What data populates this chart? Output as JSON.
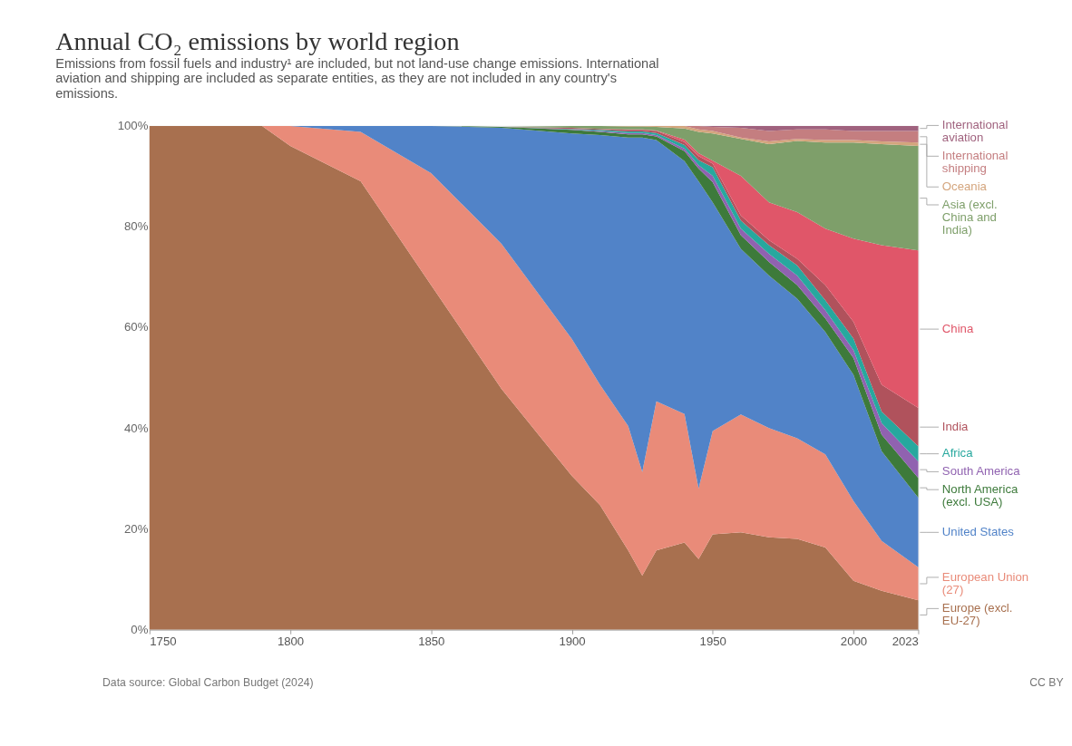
{
  "chart_data": {
    "type": "area",
    "stacked": true,
    "title": "Annual CO₂ emissions by world region",
    "subtitle": "Emissions from fossil fuels and industry¹ are included, but not land-use change emissions. International aviation and shipping are included as separate entities, as they are not included in any country's emissions.",
    "x": [
      1750,
      1790,
      1800,
      1825,
      1850,
      1875,
      1900,
      1910,
      1920,
      1925,
      1930,
      1940,
      1945,
      1950,
      1960,
      1970,
      1980,
      1990,
      2000,
      2010,
      2023
    ],
    "xlim": [
      1750,
      2023
    ],
    "xticks": [
      1750,
      1800,
      1850,
      1900,
      1950,
      2000,
      2023
    ],
    "ylim": [
      0,
      100
    ],
    "yticks": [
      {
        "value": 0,
        "label": "0%"
      },
      {
        "value": 20,
        "label": "20%"
      },
      {
        "value": 40,
        "label": "40%"
      },
      {
        "value": 60,
        "label": "60%"
      },
      {
        "value": 80,
        "label": "80%"
      },
      {
        "value": 100,
        "label": "100%"
      }
    ],
    "grid": false,
    "legend": "right",
    "series": [
      {
        "name": "Europe (excl. EU-27)",
        "color": "#a8704f",
        "values": [
          100,
          100,
          96,
          89,
          68.4,
          47.8,
          30.5,
          24.7,
          15.7,
          10.7,
          15.7,
          17.3,
          14,
          18.9,
          19.3,
          18.3,
          18,
          16.3,
          9.7,
          7.7,
          5.8
        ]
      },
      {
        "name": "European Union (27)",
        "color": "#e98b79",
        "values": [
          0,
          0,
          4,
          9.8,
          22.2,
          28.8,
          27.2,
          23.9,
          24.7,
          20.6,
          29.6,
          25.5,
          14,
          20.5,
          23.4,
          21.7,
          20,
          18.5,
          15.8,
          9.9,
          6.6
        ]
      },
      {
        "name": "United States",
        "color": "#5183c8",
        "values": [
          0,
          0,
          0,
          1.2,
          9.4,
          23,
          40.8,
          49.6,
          57.3,
          66.4,
          51.9,
          50.2,
          61,
          45.4,
          32.9,
          30.3,
          27.7,
          24.3,
          25.1,
          17.8,
          13.8
        ]
      },
      {
        "name": "North America (excl. USA)",
        "color": "#3d7a3b",
        "values": [
          0,
          0,
          0,
          0,
          0,
          0.2,
          0.7,
          0.6,
          0.6,
          0.6,
          0.7,
          2,
          2.5,
          4,
          2.7,
          2.7,
          2.7,
          2.7,
          3.3,
          3.3,
          3.9
        ]
      },
      {
        "name": "South America",
        "color": "#9062b0",
        "values": [
          0,
          0,
          0,
          0,
          0,
          0,
          0.1,
          0.2,
          0.3,
          0.3,
          0.3,
          0.5,
          0.7,
          1.3,
          1.3,
          1.6,
          1.9,
          1.6,
          1.6,
          2.3,
          3.3
        ]
      },
      {
        "name": "Africa",
        "color": "#27a89e",
        "values": [
          0,
          0,
          0,
          0,
          0,
          0,
          0.1,
          0.2,
          0.3,
          0.3,
          0.4,
          0.7,
          1,
          1.7,
          1.6,
          1.7,
          2,
          2,
          2.3,
          2.3,
          3.0
        ]
      },
      {
        "name": "India",
        "color": "#b0525c",
        "values": [
          0,
          0,
          0,
          0,
          0,
          0,
          0.2,
          0.2,
          0.3,
          0.3,
          0.4,
          0.6,
          0.8,
          0.7,
          1,
          1,
          1.3,
          3,
          3.3,
          5.3,
          7.6
        ]
      },
      {
        "name": "China",
        "color": "#e05669",
        "values": [
          0,
          0,
          0,
          0,
          0,
          0,
          0,
          0,
          0.1,
          0.1,
          0.1,
          0.5,
          0.6,
          0.6,
          7.9,
          7.5,
          9.3,
          11.2,
          16.5,
          27.7,
          31.3
        ]
      },
      {
        "name": "Asia (excl. China and India)",
        "color": "#7e9f6a",
        "values": [
          0,
          0,
          0,
          0,
          0,
          0,
          0.4,
          0.6,
          0.6,
          0.6,
          0.7,
          2.2,
          4.2,
          5.4,
          7.3,
          11.6,
          14.1,
          17.1,
          19.1,
          20.1,
          20.7
        ]
      },
      {
        "name": "Oceania",
        "color": "#d4a57d",
        "values": [
          0,
          0,
          0,
          0,
          0,
          0,
          0,
          0,
          0.1,
          0.1,
          0.2,
          0.5,
          0.5,
          0.5,
          0.3,
          0.5,
          0.4,
          0.5,
          0.5,
          0.5,
          0.7
        ]
      },
      {
        "name": "International shipping",
        "color": "#c47e80",
        "values": [
          0,
          0,
          0,
          0,
          0,
          0,
          0,
          0,
          0,
          0,
          0,
          0,
          0.7,
          0.8,
          1.9,
          2.1,
          1.9,
          2.1,
          1.8,
          2.1,
          2.3
        ]
      },
      {
        "name": "International aviation",
        "color": "#a0627e",
        "values": [
          0,
          0,
          0,
          0,
          0,
          0,
          0,
          0,
          0,
          0,
          0,
          0,
          0,
          0.2,
          0.4,
          1,
          0.7,
          0.7,
          1,
          1,
          1.0
        ]
      }
    ],
    "annotations": [
      "Data source: Global Carbon Budget (2024)",
      "CC BY"
    ]
  }
}
